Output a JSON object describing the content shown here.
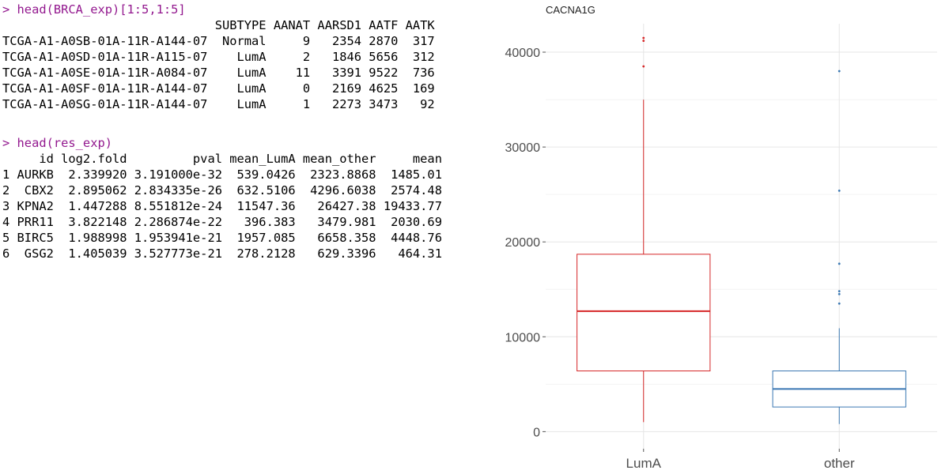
{
  "console": {
    "cmd1": "> head(BRCA_exp)[1:5,1:5]",
    "table1_header": "                             SUBTYPE AANAT AARSD1 AATF AATK",
    "table1_rows": [
      "TCGA-A1-A0SB-01A-11R-A144-07  Normal     9   2354 2870  317",
      "TCGA-A1-A0SD-01A-11R-A115-07    LumA     2   1846 5656  312",
      "TCGA-A1-A0SE-01A-11R-A084-07    LumA    11   3391 9522  736",
      "TCGA-A1-A0SF-01A-11R-A144-07    LumA     0   2169 4625  169",
      "TCGA-A1-A0SG-01A-11R-A144-07    LumA     1   2273 3473   92"
    ],
    "cmd2": "> head(res_exp)",
    "table2_header": "     id log2.fold         pval mean_LumA mean_other     mean",
    "table2_rows": [
      "1 AURKB  2.339920 3.191000e-32  539.0426  2323.8868  1485.01",
      "2  CBX2  2.895062 2.834335e-26  632.5106  4296.6038  2574.48",
      "3 KPNA2  1.447288 8.551812e-24  11547.36   26427.38 19433.77",
      "4 PRR11  3.822148 2.286874e-22   396.383   3479.981  2030.69",
      "5 BIRC5  1.988998 1.953941e-21  1957.085   6658.358  4448.76",
      "6  GSG2  1.405039 3.527773e-21  278.2128   629.3396   464.31"
    ]
  },
  "chart_data": {
    "type": "boxplot",
    "title": "CACNA1G",
    "xlabel": "",
    "ylabel": "",
    "categories": [
      "LumA",
      "other"
    ],
    "ylim": [
      -1800,
      43000
    ],
    "yticks": [
      0,
      10000,
      20000,
      30000,
      40000
    ],
    "ytick_labels": [
      "0",
      "10000",
      "20000",
      "30000",
      "40000"
    ],
    "grid": true,
    "legend": "none",
    "boxes": [
      {
        "category": "LumA",
        "color": "#d62728",
        "whisker_low": 1000,
        "q1": 6400,
        "median": 12700,
        "q3": 18700,
        "whisker_high": 35000,
        "outliers": [
          38500,
          41200,
          41500
        ]
      },
      {
        "category": "other",
        "color": "#3b78b3",
        "whisker_low": 800,
        "q1": 2600,
        "median": 4500,
        "q3": 6400,
        "whisker_high": 10900,
        "outliers": [
          13500,
          14500,
          14800,
          17700,
          25400,
          38000
        ]
      }
    ]
  }
}
